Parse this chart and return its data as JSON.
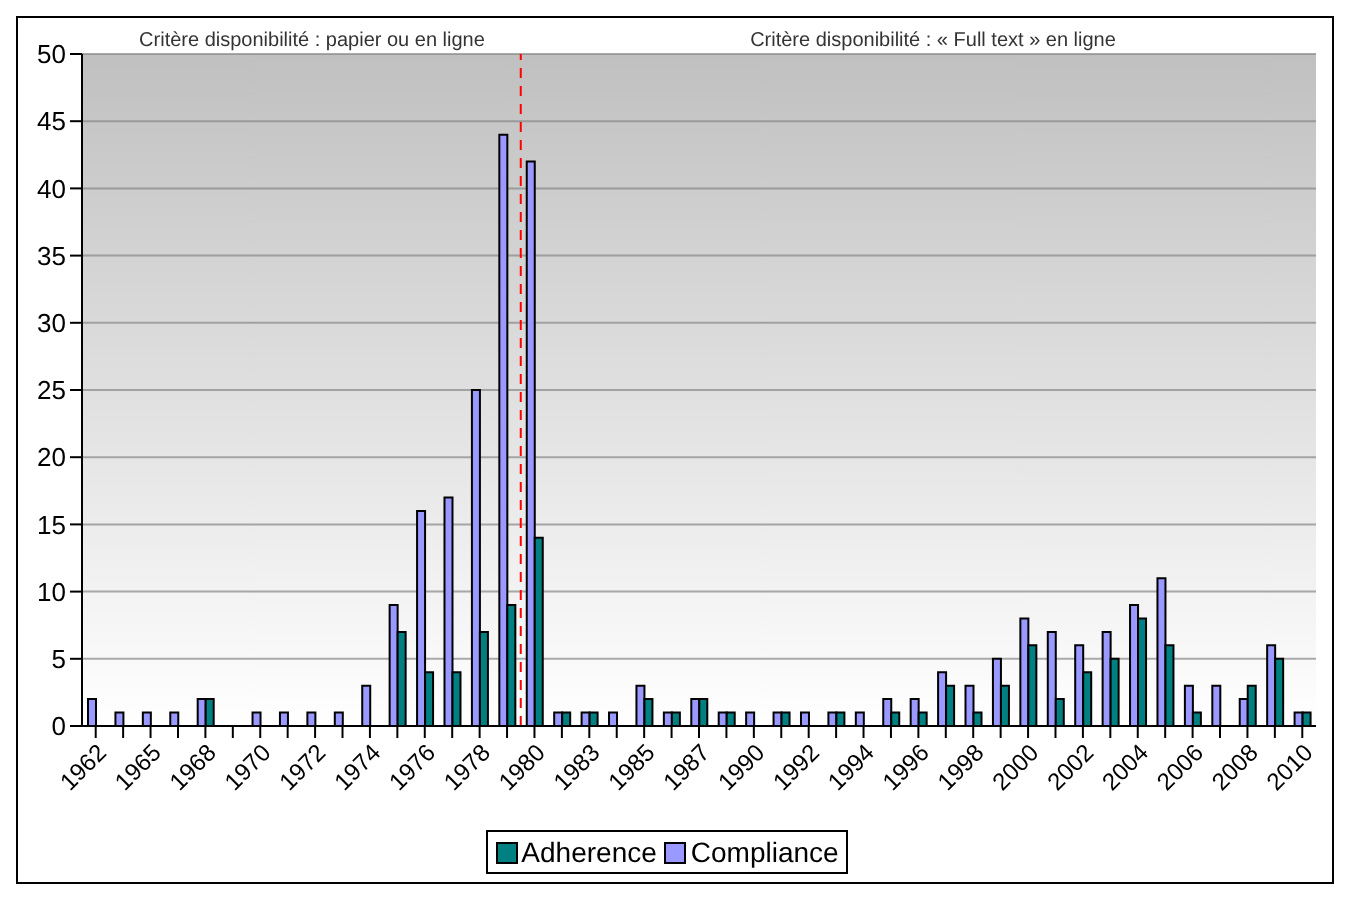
{
  "chart_data": {
    "type": "bar",
    "categories": [
      "1962",
      null,
      "1965",
      null,
      "1968",
      null,
      "1970",
      null,
      "1972",
      null,
      "1974",
      null,
      "1976",
      null,
      "1978",
      null,
      "1980",
      null,
      "1983",
      null,
      "1985",
      null,
      "1987",
      null,
      "1990",
      null,
      "1992",
      null,
      "1994",
      null,
      "1996",
      null,
      "1998",
      null,
      "2000",
      null,
      "2002",
      null,
      "2004",
      null,
      "2006",
      null,
      "2008",
      null,
      "2010"
    ],
    "series": [
      {
        "name": "Compliance",
        "color": "#9999ff",
        "values": [
          2,
          1,
          1,
          1,
          2,
          0,
          1,
          1,
          1,
          1,
          3,
          9,
          16,
          17,
          25,
          44,
          42,
          1,
          1,
          1,
          3,
          1,
          2,
          1,
          1,
          1,
          1,
          1,
          1,
          2,
          2,
          4,
          3,
          5,
          8,
          7,
          6,
          7,
          9,
          11,
          3,
          3,
          2,
          6,
          1
        ]
      },
      {
        "name": "Adherence",
        "color": "#008080",
        "values": [
          0,
          0,
          0,
          0,
          2,
          0,
          0,
          0,
          0,
          0,
          0,
          7,
          4,
          4,
          7,
          9,
          14,
          1,
          1,
          0,
          2,
          1,
          2,
          1,
          0,
          1,
          0,
          1,
          0,
          1,
          1,
          3,
          1,
          3,
          6,
          2,
          4,
          5,
          8,
          6,
          1,
          0,
          3,
          5,
          1
        ]
      }
    ],
    "ylim": [
      0,
      50
    ],
    "yticks": [
      0,
      5,
      10,
      15,
      20,
      25,
      30,
      35,
      40,
      45,
      50
    ],
    "grid": "y",
    "legend": "bottom",
    "ref_lines": [
      {
        "axis": "x",
        "value": "1980",
        "color": "#ff0000",
        "line_style": "dashed"
      }
    ],
    "annotations": [
      "Critère disponibilité : papier ou en ligne",
      "Critère disponibilité : « Full text » en ligne"
    ]
  }
}
